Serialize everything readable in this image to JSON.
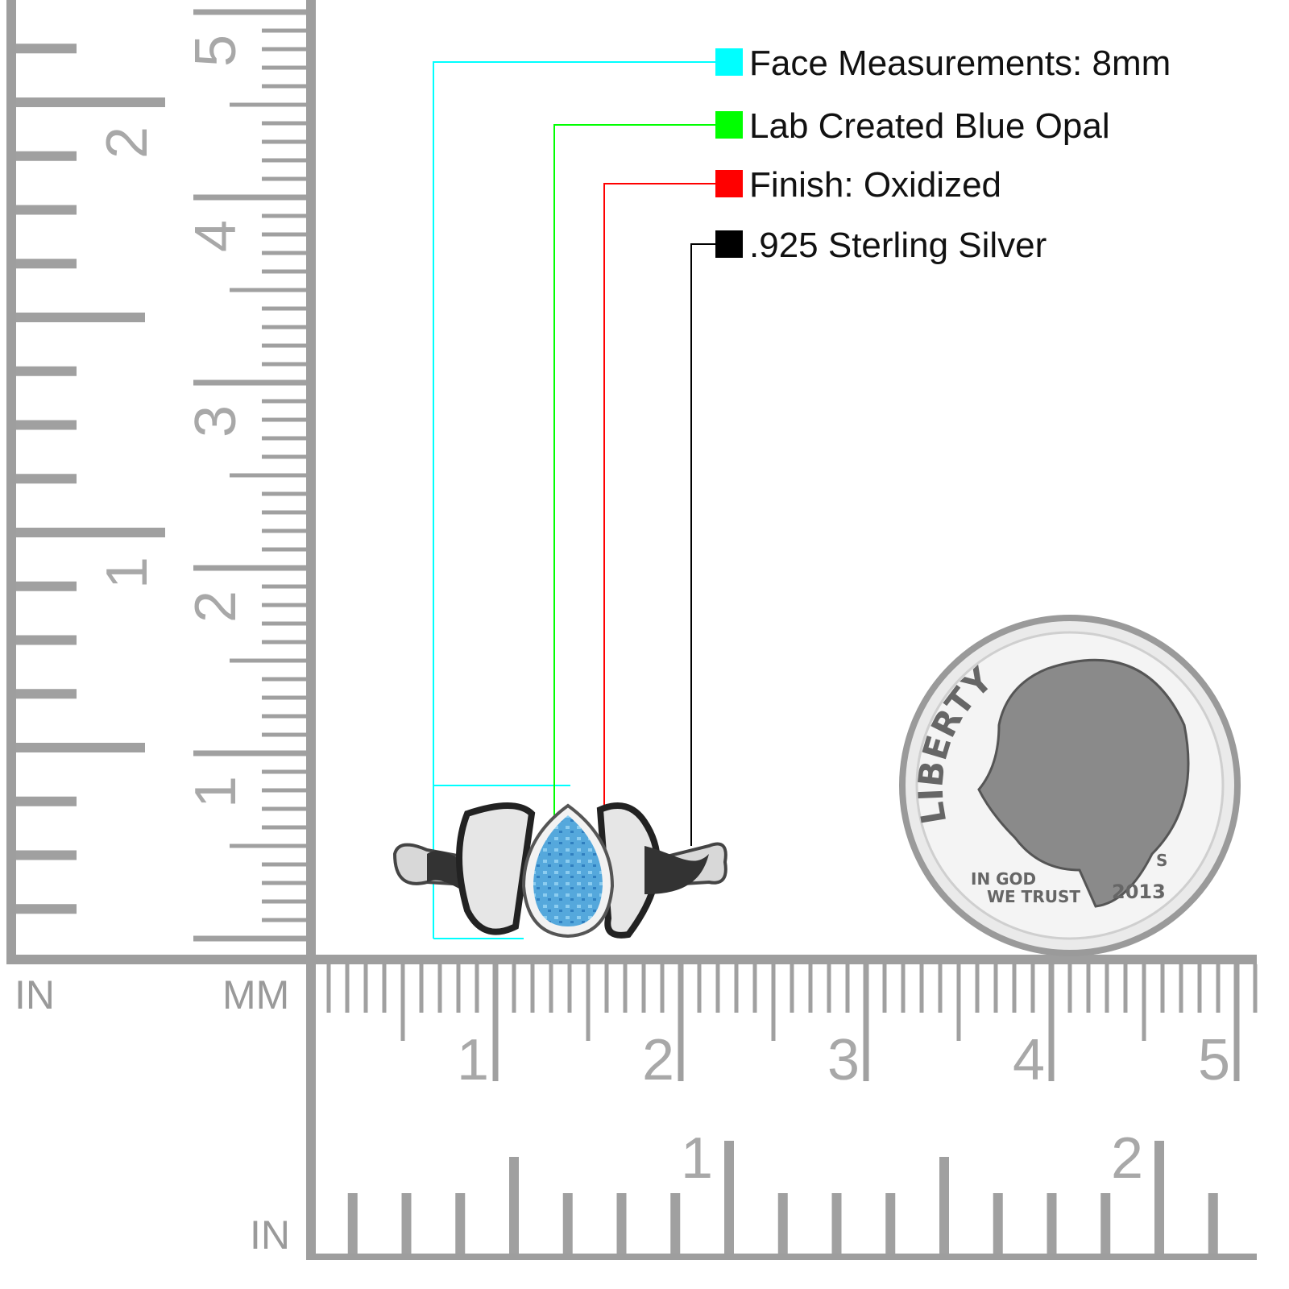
{
  "legend": [
    {
      "label": "Face Measurements: 8mm",
      "color": "#00ffff"
    },
    {
      "label": "Lab Created Blue Opal",
      "color": "#00ff00"
    },
    {
      "label": "Finish: Oxidized",
      "color": "#ff0000"
    },
    {
      "label": ".925 Sterling Silver",
      "color": "#000000"
    }
  ],
  "ruler_left": {
    "inch_unit": "IN",
    "mm_unit": "MM",
    "inch_labels": [
      "1",
      "2"
    ],
    "cm_labels": [
      "1",
      "2",
      "3",
      "4",
      "5"
    ]
  },
  "ruler_bottom": {
    "inch_unit": "IN",
    "cm_labels": [
      "1",
      "2",
      "3",
      "4",
      "5"
    ],
    "inch_labels": [
      "1",
      "2"
    ]
  },
  "coin": {
    "legend_text": "LIBERTY",
    "motto_line1": "IN GOD",
    "motto_line2": "WE TRUST",
    "mint_mark": "S",
    "year": "2013"
  }
}
